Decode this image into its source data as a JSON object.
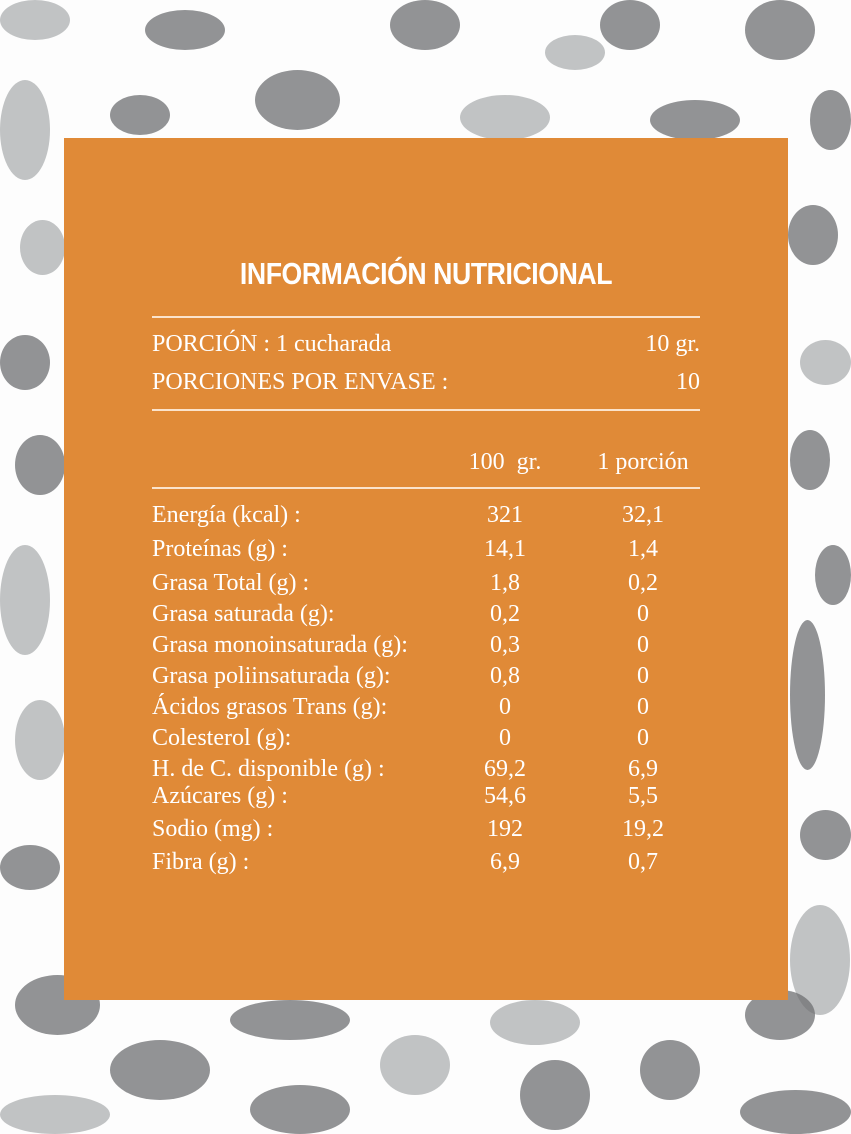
{
  "title": "INFORMACIÓN NUTRICIONAL",
  "panel_color": "#e08a37",
  "serving": {
    "label": "PORCIÓN : 1 cucharada",
    "value": "10 gr."
  },
  "servings_per_container": {
    "label": "PORCIONES POR ENVASE :",
    "value": "10"
  },
  "columns": [
    "100  gr.",
    "1 porción"
  ],
  "rows": [
    {
      "label": "Energía (kcal) :",
      "per100": "321",
      "perPortion": "32,1"
    },
    {
      "label": "Proteínas (g) :",
      "per100": "14,1",
      "perPortion": "1,4"
    },
    {
      "label": "Grasa Total (g) :",
      "per100": "1,8",
      "perPortion": "0,2"
    },
    {
      "label": "Grasa saturada (g):",
      "per100": "0,2",
      "perPortion": "0"
    },
    {
      "label": "Grasa monoinsaturada (g):",
      "per100": "0,3",
      "perPortion": "0"
    },
    {
      "label": "Grasa poliinsaturada (g):",
      "per100": "0,8",
      "perPortion": "0"
    },
    {
      "label": "Ácidos grasos Trans (g):",
      "per100": "0",
      "perPortion": "0"
    },
    {
      "label": "Colesterol (g):",
      "per100": "0",
      "perPortion": "0"
    },
    {
      "label": "H. de C. disponible (g) :",
      "per100": "69,2",
      "perPortion": "6,9"
    },
    {
      "label": "Azúcares (g) :",
      "per100": "54,6",
      "perPortion": "5,5"
    },
    {
      "label": "Sodio (mg)  :",
      "per100": "192",
      "perPortion": "19,2"
    },
    {
      "label": "Fibra (g) :",
      "per100": "6,9",
      "perPortion": "0,7"
    }
  ]
}
